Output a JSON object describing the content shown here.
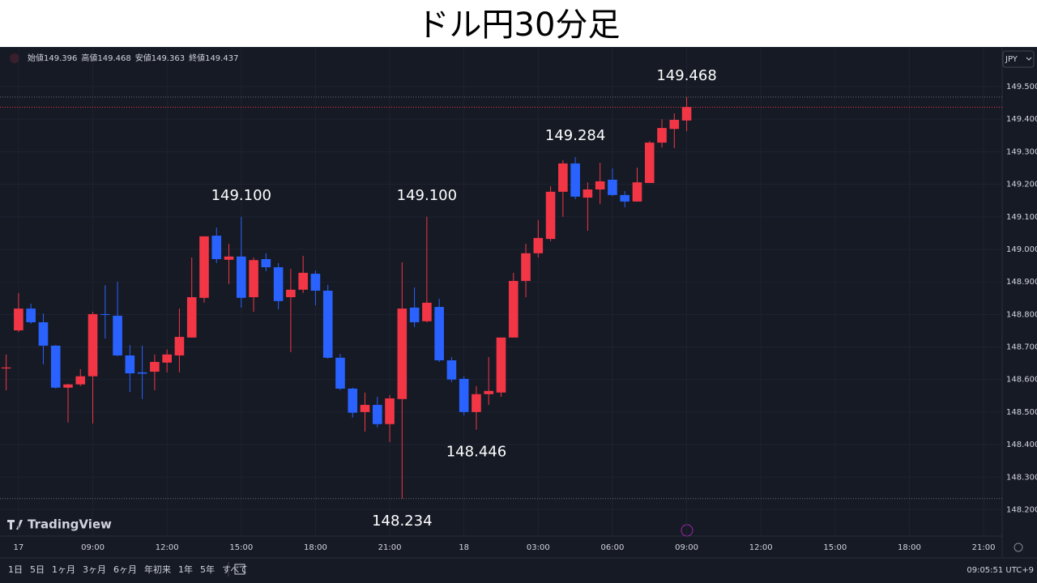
{
  "chart_data": {
    "type": "candlestick",
    "title": "ドル円30分足",
    "ohlc_labels": [
      "始値",
      "高値",
      "安値",
      "終値"
    ],
    "currency": "JPY",
    "watermark": "TradingView",
    "toolbar": [
      "1日",
      "5日",
      "1ヶ月",
      "3ヶ月",
      "6ヶ月",
      "年初来",
      "1年",
      "5年",
      "すべて"
    ],
    "clock": "09:05:51 UTC+9",
    "up_color": "#f23645",
    "down_color": "#2962ff",
    "grid": true,
    "categories": [
      null,
      "17",
      null,
      null,
      null,
      null,
      null,
      "09:00",
      null,
      null,
      null,
      null,
      null,
      "12:00",
      null,
      null,
      null,
      null,
      null,
      "15:00",
      null,
      null,
      null,
      null,
      null,
      "18:00",
      null,
      null,
      null,
      null,
      null,
      "21:00",
      null,
      null,
      null,
      null,
      null,
      "18",
      null,
      null,
      null,
      null,
      null,
      "03:00",
      null,
      null,
      null,
      null,
      null,
      "06:00",
      null,
      null,
      null,
      null,
      null,
      "09:00",
      null,
      null,
      null,
      null,
      null,
      "12:00",
      null,
      null,
      null,
      null,
      null,
      "15:00",
      null,
      null,
      null,
      null,
      null,
      "18:00",
      null,
      null,
      null,
      null,
      null,
      "21:00",
      null
    ],
    "open": [
      148.634,
      148.751,
      148.818,
      148.776,
      148.704,
      148.575,
      148.585,
      148.61,
      148.801,
      148.796,
      148.674,
      148.622,
      148.624,
      148.652,
      148.674,
      148.729,
      148.851,
      149.042,
      148.968,
      148.978,
      148.853,
      148.97,
      148.945,
      148.853,
      148.876,
      148.925,
      148.873,
      148.667,
      148.572,
      148.5,
      148.522,
      148.463,
      148.54,
      148.821,
      148.779,
      148.823,
      148.659,
      148.602,
      148.5,
      148.555,
      148.56,
      148.729,
      148.903,
      148.988,
      149.032,
      149.177,
      149.264,
      149.159,
      149.184,
      149.214,
      149.167,
      149.147,
      149.204,
      149.328,
      149.37,
      149.396,
      null,
      null,
      null,
      null,
      null,
      null,
      null,
      null,
      null,
      null,
      null,
      null,
      null,
      null,
      null,
      null,
      null,
      null,
      null,
      null,
      null,
      null,
      null,
      null,
      null
    ],
    "high": [
      148.677,
      148.866,
      148.833,
      148.803,
      148.706,
      148.587,
      148.632,
      148.808,
      148.89,
      148.9,
      148.706,
      148.704,
      148.677,
      148.692,
      148.818,
      148.975,
      149.04,
      149.067,
      149.017,
      149.1,
      148.975,
      148.988,
      148.958,
      148.94,
      148.98,
      148.935,
      148.891,
      148.679,
      148.575,
      148.56,
      148.547,
      148.552,
      148.96,
      148.883,
      149.1,
      148.848,
      148.669,
      148.61,
      148.58,
      148.669,
      148.729,
      148.928,
      149.017,
      149.09,
      149.194,
      149.274,
      149.284,
      149.206,
      149.266,
      149.249,
      149.179,
      149.251,
      149.333,
      149.4,
      149.418,
      149.468,
      null,
      null,
      null,
      null,
      null,
      null,
      null,
      null,
      null,
      null,
      null,
      null,
      null,
      null,
      null,
      null,
      null,
      null,
      null,
      null,
      null,
      null,
      null,
      null,
      null
    ],
    "low": [
      148.567,
      148.746,
      148.771,
      148.647,
      148.572,
      148.468,
      148.58,
      148.465,
      148.726,
      148.672,
      148.562,
      148.54,
      148.567,
      148.622,
      148.622,
      148.729,
      148.836,
      148.958,
      148.893,
      148.821,
      148.808,
      148.933,
      148.816,
      148.684,
      148.866,
      148.828,
      148.664,
      148.567,
      148.483,
      148.44,
      148.453,
      148.408,
      148.234,
      148.761,
      148.776,
      148.654,
      148.592,
      148.49,
      148.446,
      148.522,
      148.547,
      148.729,
      148.853,
      148.975,
      149.025,
      149.1,
      149.154,
      149.057,
      149.139,
      149.164,
      149.129,
      149.147,
      149.204,
      149.313,
      149.311,
      149.363,
      null,
      null,
      null,
      null,
      null,
      null,
      null,
      null,
      null,
      null,
      null,
      null,
      null,
      null,
      null,
      null,
      null,
      null,
      null,
      null,
      null,
      null,
      null,
      null,
      null
    ],
    "close": [
      148.637,
      148.818,
      148.776,
      148.704,
      148.575,
      148.585,
      148.61,
      148.801,
      148.799,
      148.674,
      148.619,
      148.618,
      148.654,
      148.677,
      148.731,
      148.853,
      149.04,
      148.97,
      148.978,
      148.851,
      148.967,
      148.945,
      148.841,
      148.876,
      148.928,
      148.873,
      148.667,
      148.572,
      148.498,
      148.522,
      148.463,
      148.542,
      148.818,
      148.776,
      148.836,
      148.659,
      148.6,
      148.5,
      148.555,
      148.565,
      148.729,
      148.903,
      148.988,
      149.035,
      149.177,
      149.264,
      149.162,
      149.184,
      149.209,
      149.167,
      149.147,
      149.206,
      149.328,
      149.373,
      149.398,
      149.437,
      null,
      null,
      null,
      null,
      null,
      null,
      null,
      null,
      null,
      null,
      null,
      null,
      null,
      null,
      null,
      null,
      null,
      null,
      null,
      null,
      null,
      null,
      null,
      null,
      null
    ],
    "annotations": [
      {
        "index": 55,
        "value": 149.468
      },
      {
        "index": 46,
        "value": 149.284
      },
      {
        "index": 19,
        "value": {
          "value": 149.1,
          "label": "149.100"
        }
      },
      {
        "index": 34,
        "value": {
          "value": 149.1,
          "label": "149.100"
        }
      },
      {
        "index": 38,
        "value": 148.446
      },
      {
        "index": 32,
        "value": 148.234
      }
    ],
    "ylim": [
      148.119,
      149.622
    ],
    "yticks": [
      {
        "value": 148.2,
        "label": "148.200"
      },
      {
        "value": 148.3,
        "label": "148.300"
      },
      {
        "value": 148.4,
        "label": "148.400"
      },
      {
        "value": 148.5,
        "label": "148.500"
      },
      {
        "value": 148.6,
        "label": "148.600"
      },
      {
        "value": 148.7,
        "label": "148.700"
      },
      {
        "value": 148.8,
        "label": "148.800"
      },
      {
        "value": 148.9,
        "label": "148.900"
      },
      {
        "value": 149.0,
        "label": "149.000"
      },
      {
        "value": 149.1,
        "label": "149.100"
      },
      {
        "value": 149.2,
        "label": "149.200"
      },
      {
        "value": 149.3,
        "label": "149.300"
      },
      {
        "value": 149.4,
        "label": "149.400"
      },
      {
        "value": 149.5,
        "label": "149.500"
      }
    ]
  }
}
